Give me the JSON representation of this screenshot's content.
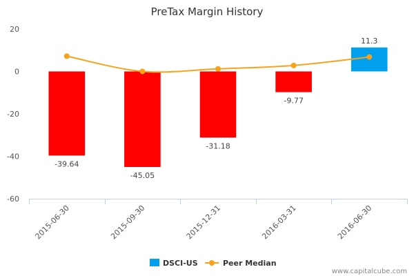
{
  "chart_data": {
    "type": "bar",
    "title": "PreTax Margin History",
    "categories": [
      "2015-06-30",
      "2015-09-30",
      "2015-12-31",
      "2016-03-31",
      "2016-06-30"
    ],
    "ylim": [
      -60,
      20
    ],
    "yticks": [
      20,
      0,
      -20,
      -40,
      -60
    ],
    "grid": false,
    "legend_position": "bottom",
    "series": [
      {
        "name": "DSCI-US",
        "type": "bar",
        "values": [
          -39.64,
          -45.05,
          -31.18,
          -9.77,
          11.3
        ],
        "data_labels": [
          "-39.64",
          "-45.05",
          "-31.18",
          "-9.77",
          "11.3"
        ],
        "color": "#00a0ef",
        "negative_color": "#ff0000"
      },
      {
        "name": "Peer Median",
        "type": "line",
        "values": [
          7.2,
          0.0,
          1.2,
          2.8,
          6.8
        ],
        "color": "#f7a21b"
      }
    ]
  },
  "credit": "www.capitalcube.com"
}
